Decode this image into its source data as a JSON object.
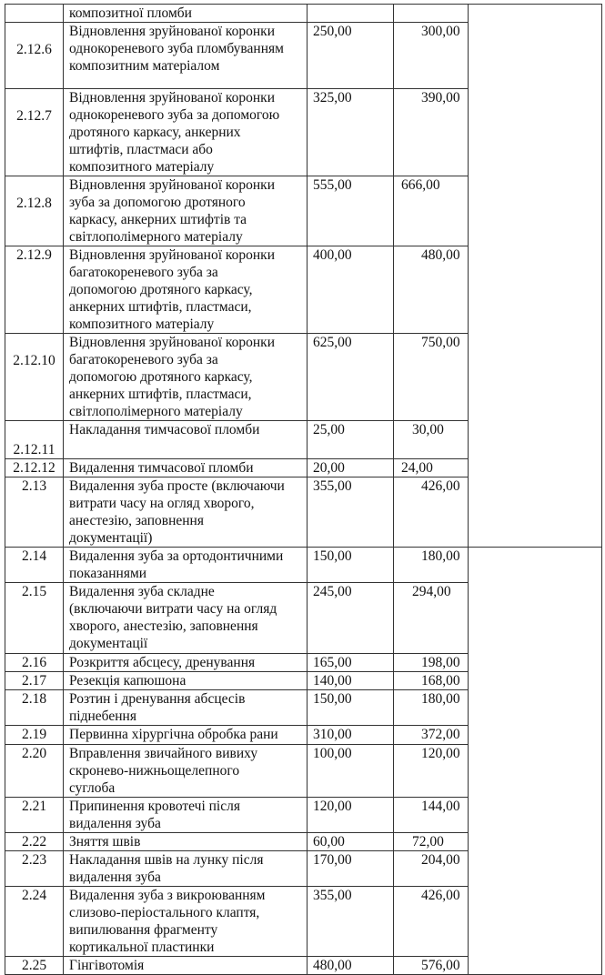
{
  "rows": [
    {
      "code": "",
      "lines": [
        "композитної пломби"
      ],
      "price1": "",
      "price2": ""
    },
    {
      "code": "2.12.6",
      "lines": [
        "Відновлення зруйнованої коронки",
        "однокореневого зуба пломбуванням",
        "композитним матеріалом"
      ],
      "price1": "250,00",
      "price2": "300,00"
    },
    {
      "code": "2.12.7",
      "lines": [
        "Відновлення зруйнованої коронки",
        "однокореневого зуба за допомогою",
        "дротяного каркасу, анкерних",
        "штифтів, пластмаси або",
        "композитного матеріалу"
      ],
      "price1": "325,00",
      "price2": "390,00"
    },
    {
      "code": "2.12.8",
      "lines": [
        "Відновлення зруйнованої коронки",
        "зуба за допомогою дротяного",
        "каркасу, анкерних штифтів та",
        "світлополімерного матеріалу"
      ],
      "price1": "555,00",
      "price2": "666,00"
    },
    {
      "code": "2.12.9",
      "lines": [
        "Відновлення зруйнованої коронки",
        "багатокореневого зуба за",
        "допомогою дротяного каркасу,",
        "анкерних штифтів, пластмаси,",
        "композитного матеріалу"
      ],
      "price1": "400,00",
      "price2": "480,00"
    },
    {
      "code": "2.12.10",
      "lines": [
        "Відновлення зруйнованої коронки",
        "багатокореневого зуба за",
        "допомогою дротяного каркасу,",
        "анкерних штифтів, пластмаси,",
        "світлополімерного матеріалу"
      ],
      "price1": "625,00",
      "price2": "750,00"
    },
    {
      "code": "2.12.11",
      "lines": [
        "Накладання тимчасової пломби"
      ],
      "price1": "25,00",
      "price2": "30,00"
    },
    {
      "code": "2.12.12",
      "lines": [
        "Видалення тимчасової пломби"
      ],
      "price1": "20,00",
      "price2": "24,00"
    },
    {
      "code": "2.13",
      "lines": [
        "Видалення зуба просте (включаючи",
        "витрати часу на огляд хворого,",
        "анестезію, заповнення",
        "документації)"
      ],
      "price1": "355,00",
      "price2": "426,00"
    },
    {
      "code": "2.14",
      "lines": [
        "Видалення зуба за ортодонтичними",
        "показаннями"
      ],
      "price1": "150,00",
      "price2": "180,00"
    },
    {
      "code": "2.15",
      "lines": [
        "Видалення зуба складне",
        "(включаючи витрати часу на огляд",
        "хворого, анестезію, заповнення",
        "документації"
      ],
      "price1": "245,00",
      "price2": "294,00"
    },
    {
      "code": "2.16",
      "lines": [
        "Розкриття абсцесу, дренування"
      ],
      "price1": "165,00",
      "price2": "198,00"
    },
    {
      "code": "2.17",
      "lines": [
        "Резекція капюшона"
      ],
      "price1": "140,00",
      "price2": "168,00"
    },
    {
      "code": "2.18",
      "lines": [
        "Розтин і дренування абсцесів",
        "піднебення"
      ],
      "price1": "150,00",
      "price2": "180,00"
    },
    {
      "code": "2.19",
      "lines": [
        "Первинна хірургічна обробка рани"
      ],
      "price1": "310,00",
      "price2": "372,00"
    },
    {
      "code": "2.20",
      "lines": [
        "Вправлення звичайного вивиху",
        "скронево-нижньощелепного",
        "суглоба"
      ],
      "price1": "100,00",
      "price2": "120,00"
    },
    {
      "code": "2.21",
      "lines": [
        "Припинення кровотечі після",
        "видалення зуба"
      ],
      "price1": "120,00",
      "price2": "144,00"
    },
    {
      "code": "2.22",
      "lines": [
        "Зняття швів"
      ],
      "price1": "60,00",
      "price2": "72,00"
    },
    {
      "code": "2.23",
      "lines": [
        "Накладання швів на лунку після",
        "видалення зуба"
      ],
      "price1": "170,00",
      "price2": "204,00"
    },
    {
      "code": "2.24",
      "lines": [
        "Видалення зуба з викроюванням",
        "слизово-періостального клаптя,",
        "випилювання фрагменту",
        "кортикальної пластинки"
      ],
      "price1": "355,00",
      "price2": "426,00"
    },
    {
      "code": "2.25",
      "lines": [
        "Гінгівотомія"
      ],
      "price1": "480,00",
      "price2": "576,00"
    }
  ]
}
